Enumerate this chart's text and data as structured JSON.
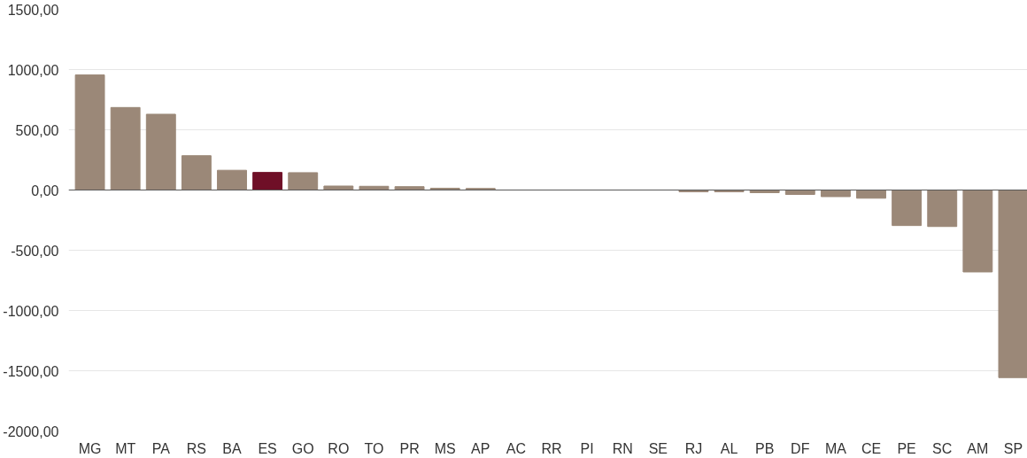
{
  "chart_data": {
    "type": "bar",
    "categories": [
      "MG",
      "MT",
      "PA",
      "RS",
      "BA",
      "ES",
      "GO",
      "RO",
      "TO",
      "PR",
      "MS",
      "AP",
      "AC",
      "RR",
      "PI",
      "RN",
      "SE",
      "RJ",
      "AL",
      "PB",
      "DF",
      "MA",
      "CE",
      "PE",
      "SC",
      "AM",
      "SP"
    ],
    "values": [
      955,
      685,
      629,
      285,
      164,
      146,
      144,
      33,
      31,
      28,
      15,
      13,
      null,
      null,
      null,
      null,
      null,
      -15,
      -15,
      -22,
      -37,
      -55,
      -68,
      -295,
      -303,
      -680,
      -1557
    ],
    "colors": [
      "#9b8878",
      "#9b8878",
      "#9b8878",
      "#9b8878",
      "#9b8878",
      "#6f0f27",
      "#9b8878",
      "#9b8878",
      "#9b8878",
      "#9b8878",
      "#9b8878",
      "#9b8878",
      "#9b8878",
      "#9b8878",
      "#9b8878",
      "#9b8878",
      "#9b8878",
      "#9b8878",
      "#9b8878",
      "#9b8878",
      "#9b8878",
      "#9b8878",
      "#9b8878",
      "#9b8878",
      "#9b8878",
      "#9b8878",
      "#9b8878"
    ],
    "ylim": [
      -2000,
      1500
    ],
    "yticks": [
      {
        "value": -2000,
        "label": "-2000,00"
      },
      {
        "value": -1500,
        "label": "-1500,00"
      },
      {
        "value": -1000,
        "label": "-1000,00"
      },
      {
        "value": -500,
        "label": "-500,00"
      },
      {
        "value": 0,
        "label": "0,00"
      },
      {
        "value": 500,
        "label": "500,00"
      },
      {
        "value": 1000,
        "label": "1000,00"
      },
      {
        "value": 1500,
        "label": "1500,00"
      }
    ],
    "grid": "y"
  }
}
